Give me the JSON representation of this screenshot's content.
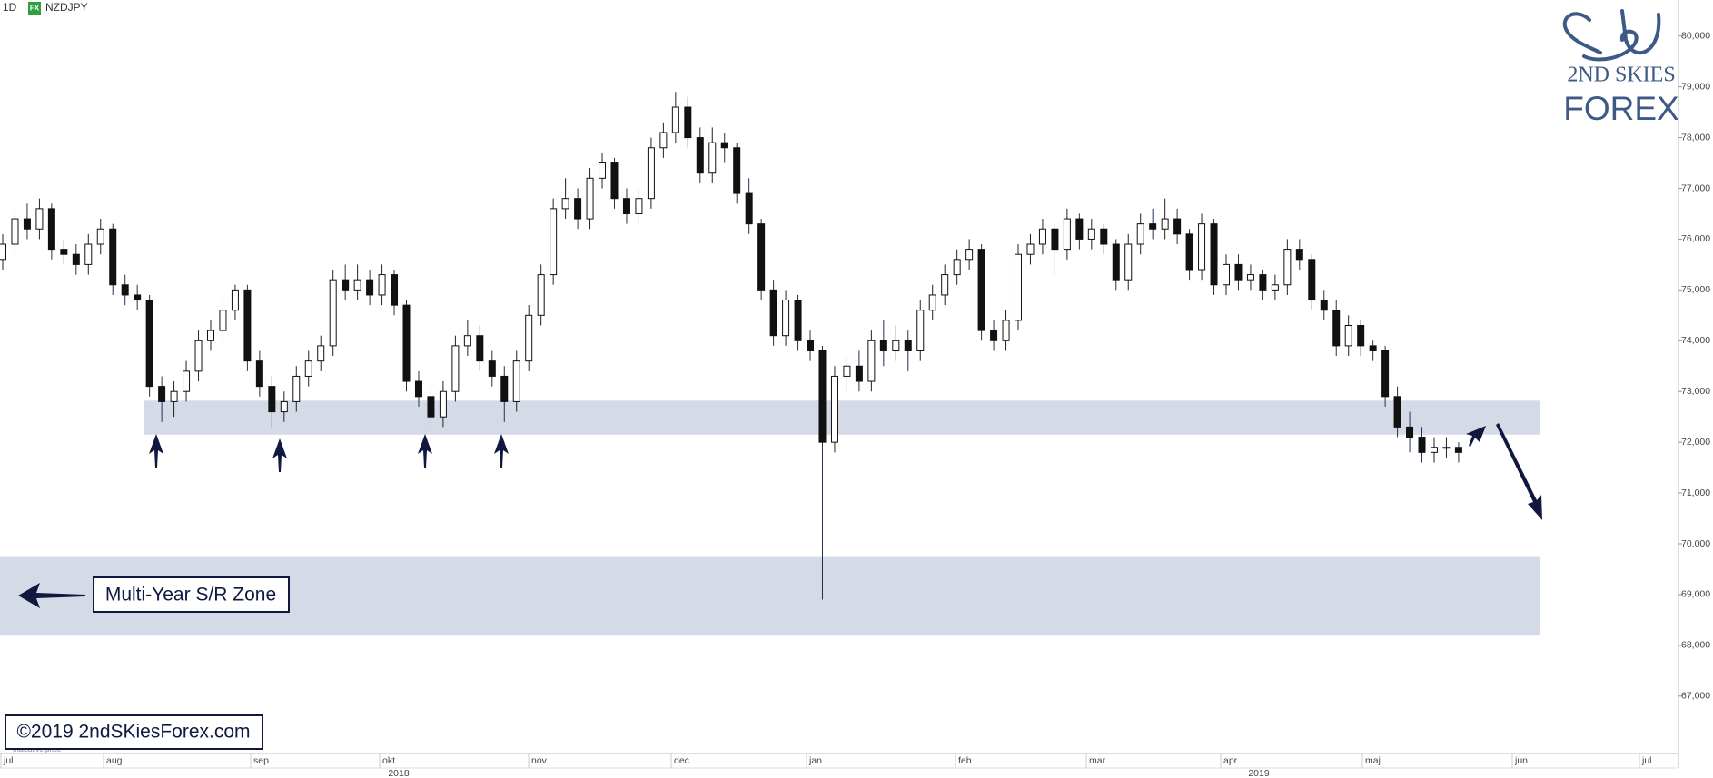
{
  "chart_data": {
    "type": "candlestick",
    "interval": "1D",
    "badge": "FX",
    "symbol": "NZDJPY",
    "logo_line1": "2ND SKIES",
    "logo_line2": "FOREX",
    "annotation": "Multi-Year S/R Zone",
    "copyright": "©2019 2ndSKiesForex.com",
    "note": "Indicative price",
    "ylim": [
      65.87,
      80.71
    ],
    "yticks": [
      {
        "value": 67,
        "label": "67,000"
      },
      {
        "value": 68,
        "label": "68,000"
      },
      {
        "value": 69,
        "label": "69,000"
      },
      {
        "value": 70,
        "label": "70,000"
      },
      {
        "value": 71,
        "label": "71,000"
      },
      {
        "value": 72,
        "label": "72,000"
      },
      {
        "value": 73,
        "label": "73,000"
      },
      {
        "value": 74,
        "label": "74,000"
      },
      {
        "value": 75,
        "label": "75,000"
      },
      {
        "value": 76,
        "label": "76,000"
      },
      {
        "value": 77,
        "label": "77,000"
      },
      {
        "value": 78,
        "label": "78,000"
      },
      {
        "value": 79,
        "label": "79,000"
      },
      {
        "value": 80,
        "label": "80,000"
      }
    ],
    "months": [
      "jul",
      "aug",
      "sep",
      "okt",
      "nov",
      "dec",
      "jan",
      "feb",
      "mar",
      "apr",
      "maj",
      "jun",
      "jul"
    ],
    "years": [
      "2018",
      "2019"
    ],
    "zones": [
      {
        "from": 72.15,
        "to": 72.82,
        "color": "#d5dbe6"
      },
      {
        "from": 68.19,
        "to": 69.74,
        "color": "#d5dbe6"
      }
    ],
    "up_color": "#ffffff",
    "down_color": "#111111",
    "candles": [
      [
        75.6,
        76.1,
        75.4,
        75.9
      ],
      [
        75.9,
        76.6,
        75.7,
        76.4
      ],
      [
        76.4,
        76.7,
        76.0,
        76.2
      ],
      [
        76.2,
        76.8,
        76.0,
        76.6
      ],
      [
        76.6,
        76.7,
        75.6,
        75.8
      ],
      [
        75.8,
        76.0,
        75.5,
        75.7
      ],
      [
        75.7,
        75.9,
        75.3,
        75.5
      ],
      [
        75.5,
        76.1,
        75.3,
        75.9
      ],
      [
        75.9,
        76.4,
        75.7,
        76.2
      ],
      [
        76.2,
        76.3,
        74.9,
        75.1
      ],
      [
        75.1,
        75.3,
        74.7,
        74.9
      ],
      [
        74.9,
        75.1,
        74.6,
        74.8
      ],
      [
        74.8,
        74.9,
        72.9,
        73.1
      ],
      [
        73.1,
        73.3,
        72.4,
        72.8
      ],
      [
        72.8,
        73.2,
        72.5,
        73.0
      ],
      [
        73.0,
        73.6,
        72.8,
        73.4
      ],
      [
        73.4,
        74.2,
        73.2,
        74.0
      ],
      [
        74.0,
        74.4,
        73.8,
        74.2
      ],
      [
        74.2,
        74.8,
        74.0,
        74.6
      ],
      [
        74.6,
        75.1,
        74.4,
        75.0
      ],
      [
        75.0,
        75.1,
        73.4,
        73.6
      ],
      [
        73.6,
        73.8,
        72.9,
        73.1
      ],
      [
        73.1,
        73.3,
        72.3,
        72.6
      ],
      [
        72.6,
        73.0,
        72.4,
        72.8
      ],
      [
        72.8,
        73.5,
        72.6,
        73.3
      ],
      [
        73.3,
        73.8,
        73.1,
        73.6
      ],
      [
        73.6,
        74.1,
        73.4,
        73.9
      ],
      [
        73.9,
        75.4,
        73.7,
        75.2
      ],
      [
        75.2,
        75.5,
        74.8,
        75.0
      ],
      [
        75.0,
        75.5,
        74.8,
        75.2
      ],
      [
        75.2,
        75.4,
        74.7,
        74.9
      ],
      [
        74.9,
        75.5,
        74.7,
        75.3
      ],
      [
        75.3,
        75.4,
        74.5,
        74.7
      ],
      [
        74.7,
        74.8,
        73.0,
        73.2
      ],
      [
        73.2,
        73.4,
        72.7,
        72.9
      ],
      [
        72.9,
        73.1,
        72.3,
        72.5
      ],
      [
        72.5,
        73.2,
        72.3,
        73.0
      ],
      [
        73.0,
        74.1,
        72.8,
        73.9
      ],
      [
        73.9,
        74.4,
        73.7,
        74.1
      ],
      [
        74.1,
        74.3,
        73.4,
        73.6
      ],
      [
        73.6,
        73.8,
        73.1,
        73.3
      ],
      [
        73.3,
        73.5,
        72.4,
        72.8
      ],
      [
        72.8,
        73.8,
        72.6,
        73.6
      ],
      [
        73.6,
        74.7,
        73.4,
        74.5
      ],
      [
        74.5,
        75.5,
        74.3,
        75.3
      ],
      [
        75.3,
        76.8,
        75.1,
        76.6
      ],
      [
        76.6,
        77.2,
        76.4,
        76.8
      ],
      [
        76.8,
        77.0,
        76.2,
        76.4
      ],
      [
        76.4,
        77.4,
        76.2,
        77.2
      ],
      [
        77.2,
        77.7,
        77.0,
        77.5
      ],
      [
        77.5,
        77.6,
        76.6,
        76.8
      ],
      [
        76.8,
        77.0,
        76.3,
        76.5
      ],
      [
        76.5,
        77.0,
        76.3,
        76.8
      ],
      [
        76.8,
        78.0,
        76.6,
        77.8
      ],
      [
        77.8,
        78.3,
        77.6,
        78.1
      ],
      [
        78.1,
        78.9,
        77.9,
        78.6
      ],
      [
        78.6,
        78.8,
        77.8,
        78.0
      ],
      [
        78.0,
        78.2,
        77.1,
        77.3
      ],
      [
        77.3,
        78.2,
        77.1,
        77.9
      ],
      [
        77.9,
        78.1,
        77.5,
        77.8
      ],
      [
        77.8,
        77.9,
        76.7,
        76.9
      ],
      [
        76.9,
        77.2,
        76.1,
        76.3
      ],
      [
        76.3,
        76.4,
        74.8,
        75.0
      ],
      [
        75.0,
        75.2,
        73.9,
        74.1
      ],
      [
        74.1,
        75.0,
        73.9,
        74.8
      ],
      [
        74.8,
        74.9,
        73.8,
        74.0
      ],
      [
        74.0,
        74.2,
        73.6,
        73.8
      ],
      [
        73.8,
        73.9,
        68.9,
        72.0
      ],
      [
        72.0,
        73.5,
        71.8,
        73.3
      ],
      [
        73.3,
        73.7,
        73.0,
        73.5
      ],
      [
        73.5,
        73.8,
        73.0,
        73.2
      ],
      [
        73.2,
        74.2,
        73.0,
        74.0
      ],
      [
        74.0,
        74.4,
        73.5,
        73.8
      ],
      [
        73.8,
        74.3,
        73.6,
        74.0
      ],
      [
        74.0,
        74.2,
        73.4,
        73.8
      ],
      [
        73.8,
        74.8,
        73.6,
        74.6
      ],
      [
        74.6,
        75.1,
        74.4,
        74.9
      ],
      [
        74.9,
        75.5,
        74.7,
        75.3
      ],
      [
        75.3,
        75.8,
        75.1,
        75.6
      ],
      [
        75.6,
        76.0,
        75.4,
        75.8
      ],
      [
        75.8,
        75.9,
        74.0,
        74.2
      ],
      [
        74.2,
        74.4,
        73.8,
        74.0
      ],
      [
        74.0,
        74.6,
        73.8,
        74.4
      ],
      [
        74.4,
        75.9,
        74.2,
        75.7
      ],
      [
        75.7,
        76.1,
        75.5,
        75.9
      ],
      [
        75.9,
        76.4,
        75.7,
        76.2
      ],
      [
        76.2,
        76.3,
        75.3,
        75.8
      ],
      [
        75.8,
        76.6,
        75.6,
        76.4
      ],
      [
        76.4,
        76.5,
        75.8,
        76.0
      ],
      [
        76.0,
        76.4,
        75.8,
        76.2
      ],
      [
        76.2,
        76.3,
        75.7,
        75.9
      ],
      [
        75.9,
        76.0,
        75.0,
        75.2
      ],
      [
        75.2,
        76.1,
        75.0,
        75.9
      ],
      [
        75.9,
        76.5,
        75.7,
        76.3
      ],
      [
        76.3,
        76.6,
        76.0,
        76.2
      ],
      [
        76.2,
        76.8,
        76.0,
        76.4
      ],
      [
        76.4,
        76.6,
        75.9,
        76.1
      ],
      [
        76.1,
        76.2,
        75.2,
        75.4
      ],
      [
        75.4,
        76.5,
        75.2,
        76.3
      ],
      [
        76.3,
        76.4,
        74.9,
        75.1
      ],
      [
        75.1,
        75.7,
        74.9,
        75.5
      ],
      [
        75.5,
        75.7,
        75.0,
        75.2
      ],
      [
        75.2,
        75.5,
        75.0,
        75.3
      ],
      [
        75.3,
        75.4,
        74.8,
        75.0
      ],
      [
        75.0,
        75.3,
        74.8,
        75.1
      ],
      [
        75.1,
        76.0,
        74.9,
        75.8
      ],
      [
        75.8,
        76.0,
        75.4,
        75.6
      ],
      [
        75.6,
        75.7,
        74.6,
        74.8
      ],
      [
        74.8,
        75.0,
        74.4,
        74.6
      ],
      [
        74.6,
        74.8,
        73.7,
        73.9
      ],
      [
        73.9,
        74.5,
        73.7,
        74.3
      ],
      [
        74.3,
        74.4,
        73.7,
        73.9
      ],
      [
        73.9,
        74.0,
        73.6,
        73.8
      ],
      [
        73.8,
        73.9,
        72.7,
        72.9
      ],
      [
        72.9,
        73.1,
        72.1,
        72.3
      ],
      [
        72.3,
        72.6,
        71.8,
        72.1
      ],
      [
        72.1,
        72.3,
        71.6,
        71.8
      ],
      [
        71.8,
        72.1,
        71.6,
        71.9
      ],
      [
        71.9,
        72.1,
        71.7,
        71.9
      ],
      [
        71.9,
        72.0,
        71.6,
        71.8
      ]
    ]
  }
}
